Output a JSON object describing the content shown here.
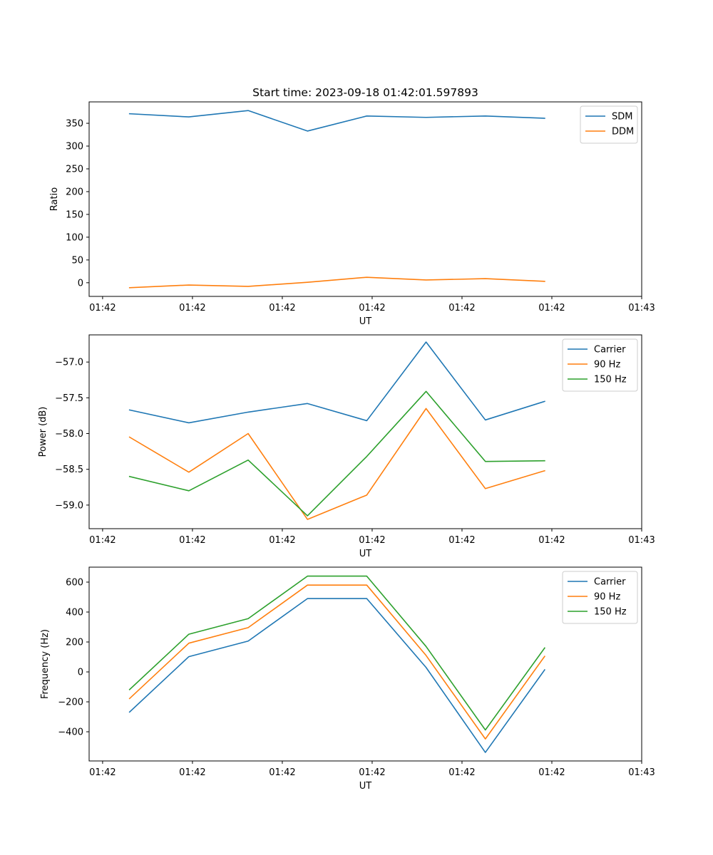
{
  "chart_data": [
    {
      "type": "line",
      "title": "Start time: 2023-09-18 01:42:01.597893",
      "xlabel": "UT",
      "ylabel": "Ratio",
      "xlim": [
        -0.45,
        5.7
      ],
      "ylim": [
        -30,
        397
      ],
      "x_ticks": [
        -0.3,
        0.7,
        1.7,
        2.7,
        3.7,
        4.7,
        5.7
      ],
      "x_tick_labels": [
        "01:42",
        "01:42",
        "01:42",
        "01:42",
        "01:42",
        "01:42",
        "01:43"
      ],
      "y_ticks": [
        0,
        50,
        100,
        150,
        200,
        250,
        300,
        350
      ],
      "y_tick_labels": [
        "0",
        "50",
        "100",
        "150",
        "200",
        "250",
        "300",
        "350"
      ],
      "x": [
        0,
        0.66,
        1.32,
        1.98,
        2.64,
        3.3,
        3.96,
        4.62
      ],
      "series": [
        {
          "name": "SDM",
          "color": "#1f77b4",
          "values": [
            371,
            364,
            378,
            333,
            366,
            363,
            366,
            361
          ]
        },
        {
          "name": "DDM",
          "color": "#ff7f0e",
          "values": [
            -11,
            -5,
            -8,
            1,
            12,
            6,
            9,
            3
          ]
        }
      ],
      "legend": "top-right"
    },
    {
      "type": "line",
      "xlabel": "UT",
      "ylabel": "Power (dB)",
      "xlim": [
        -0.45,
        5.7
      ],
      "ylim": [
        -59.33,
        -56.62
      ],
      "x_ticks": [
        -0.3,
        0.7,
        1.7,
        2.7,
        3.7,
        4.7,
        5.7
      ],
      "x_tick_labels": [
        "01:42",
        "01:42",
        "01:42",
        "01:42",
        "01:42",
        "01:42",
        "01:43"
      ],
      "y_ticks": [
        -59.0,
        -58.5,
        -58.0,
        -57.5,
        -57.0
      ],
      "y_tick_labels": [
        "−59.0",
        "−58.5",
        "−58.0",
        "−57.5",
        "−57.0"
      ],
      "x": [
        0,
        0.66,
        1.32,
        1.98,
        2.64,
        3.3,
        3.96,
        4.62
      ],
      "series": [
        {
          "name": "Carrier",
          "color": "#1f77b4",
          "values": [
            -57.67,
            -57.85,
            -57.7,
            -57.58,
            -57.82,
            -56.72,
            -57.81,
            -57.55
          ]
        },
        {
          "name": "90 Hz",
          "color": "#ff7f0e",
          "values": [
            -58.05,
            -58.54,
            -58.0,
            -59.2,
            -58.86,
            -57.65,
            -58.77,
            -58.52
          ]
        },
        {
          "name": "150 Hz",
          "color": "#2ca02c",
          "values": [
            -58.6,
            -58.8,
            -58.37,
            -59.15,
            -58.32,
            -57.41,
            -58.39,
            -58.38
          ]
        }
      ],
      "legend": "top-right"
    },
    {
      "type": "line",
      "xlabel": "UT",
      "ylabel": "Frequency (Hz)",
      "xlim": [
        -0.45,
        5.7
      ],
      "ylim": [
        -595,
        700
      ],
      "x_ticks": [
        -0.3,
        0.7,
        1.7,
        2.7,
        3.7,
        4.7,
        5.7
      ],
      "x_tick_labels": [
        "01:42",
        "01:42",
        "01:42",
        "01:42",
        "01:42",
        "01:42",
        "01:43"
      ],
      "y_ticks": [
        -400,
        -200,
        0,
        200,
        400,
        600
      ],
      "y_tick_labels": [
        "−400",
        "−200",
        "0",
        "200",
        "400",
        "600"
      ],
      "x": [
        0,
        0.66,
        1.32,
        1.98,
        2.64,
        3.3,
        3.96,
        4.62
      ],
      "series": [
        {
          "name": "Carrier",
          "color": "#1f77b4",
          "values": [
            -268,
            102,
            206,
            490,
            490,
            30,
            -538,
            14
          ]
        },
        {
          "name": "90 Hz",
          "color": "#ff7f0e",
          "values": [
            -178,
            192,
            296,
            580,
            580,
            110,
            -448,
            104
          ]
        },
        {
          "name": "150 Hz",
          "color": "#2ca02c",
          "values": [
            -118,
            252,
            356,
            640,
            640,
            170,
            -388,
            160
          ]
        }
      ],
      "legend": "top-right"
    }
  ]
}
